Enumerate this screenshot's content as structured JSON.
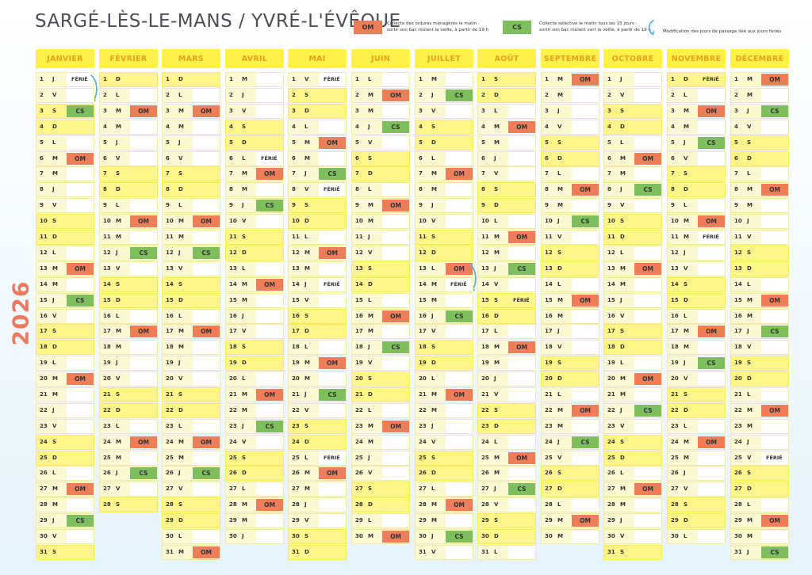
{
  "header": {
    "title": "SARGÉ-LÈS-LE-MANS / YVRÉ-L'ÉVÊQUE",
    "year": "2026"
  },
  "legend": {
    "om_label": "OM",
    "om_text_1": "Collecte des ordures ménagères le matin :",
    "om_text_2": "sortir son bac roulant la veille, à partir de 19 h",
    "cs_label": "CS",
    "cs_text_1": "Collecte sélective le matin tous les 15 jours :",
    "cs_text_2": "sortir son bac roulant vert la veille, à partir de 19 h",
    "arrow_icon": "curved-arrow-icon",
    "arrow_text": "Modification des jours de passage liée aux jours fériés"
  },
  "colors": {
    "header_bg": "#fff04a",
    "header_text": "#e8a21a",
    "weekend_bg": "#fff58a",
    "om": "#ee7e5a",
    "cs": "#7ebe5d",
    "year": "#ec7a62",
    "arrow": "#5ab4e0"
  },
  "calendar": {
    "year": 2026,
    "months": [
      "JANVIER",
      "FÉVRIER",
      "MARS",
      "AVRIL",
      "MAI",
      "JUIN",
      "JUILLET",
      "AOÛT",
      "SEPTEMBRE",
      "OCTOBRE",
      "NOVEMBRE",
      "DÉCEMBRE"
    ],
    "weekday_letters": [
      "D",
      "L",
      "M",
      "M",
      "J",
      "V",
      "S"
    ],
    "holiday_label": "FÉRIÉ",
    "holidays": [
      [
        1,
        1
      ],
      [
        4,
        6
      ],
      [
        5,
        1
      ],
      [
        5,
        8
      ],
      [
        5,
        14
      ],
      [
        5,
        25
      ],
      [
        7,
        14
      ],
      [
        8,
        15
      ],
      [
        11,
        1
      ],
      [
        11,
        11
      ],
      [
        12,
        25
      ]
    ],
    "om_label": "OM",
    "cs_label": "CS",
    "om": [
      [
        1,
        6
      ],
      [
        1,
        13
      ],
      [
        1,
        20
      ],
      [
        1,
        27
      ],
      [
        2,
        3
      ],
      [
        2,
        10
      ],
      [
        2,
        17
      ],
      [
        2,
        24
      ],
      [
        3,
        3
      ],
      [
        3,
        10
      ],
      [
        3,
        17
      ],
      [
        3,
        24
      ],
      [
        3,
        31
      ],
      [
        4,
        7
      ],
      [
        4,
        14
      ],
      [
        4,
        21
      ],
      [
        4,
        28
      ],
      [
        5,
        5
      ],
      [
        5,
        12
      ],
      [
        5,
        19
      ],
      [
        5,
        26
      ],
      [
        6,
        2
      ],
      [
        6,
        9
      ],
      [
        6,
        16
      ],
      [
        6,
        23
      ],
      [
        6,
        30
      ],
      [
        7,
        7
      ],
      [
        7,
        13
      ],
      [
        7,
        21
      ],
      [
        7,
        28
      ],
      [
        8,
        4
      ],
      [
        8,
        11
      ],
      [
        8,
        18
      ],
      [
        8,
        25
      ],
      [
        9,
        1
      ],
      [
        9,
        8
      ],
      [
        9,
        15
      ],
      [
        9,
        22
      ],
      [
        9,
        29
      ],
      [
        10,
        6
      ],
      [
        10,
        13
      ],
      [
        10,
        20
      ],
      [
        10,
        27
      ],
      [
        11,
        3
      ],
      [
        11,
        10
      ],
      [
        11,
        17
      ],
      [
        11,
        24
      ],
      [
        12,
        1
      ],
      [
        12,
        8
      ],
      [
        12,
        15
      ],
      [
        12,
        22
      ],
      [
        12,
        29
      ]
    ],
    "cs": [
      [
        1,
        3
      ],
      [
        1,
        15
      ],
      [
        1,
        29
      ],
      [
        2,
        12
      ],
      [
        2,
        26
      ],
      [
        3,
        12
      ],
      [
        3,
        26
      ],
      [
        4,
        9
      ],
      [
        4,
        23
      ],
      [
        5,
        7
      ],
      [
        5,
        21
      ],
      [
        6,
        4
      ],
      [
        6,
        18
      ],
      [
        7,
        2
      ],
      [
        7,
        16
      ],
      [
        7,
        30
      ],
      [
        8,
        13
      ],
      [
        8,
        27
      ],
      [
        9,
        10
      ],
      [
        9,
        24
      ],
      [
        10,
        8
      ],
      [
        10,
        22
      ],
      [
        11,
        5
      ],
      [
        11,
        19
      ],
      [
        12,
        3
      ],
      [
        12,
        17
      ],
      [
        12,
        31
      ]
    ],
    "modification_arrows": [
      [
        1,
        1
      ],
      [
        7,
        13
      ]
    ]
  }
}
